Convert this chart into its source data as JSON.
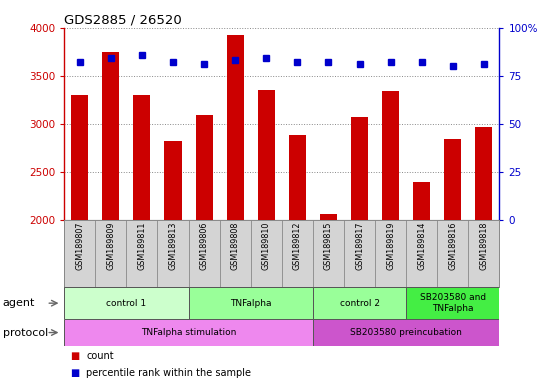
{
  "title": "GDS2885 / 26520",
  "samples": [
    "GSM189807",
    "GSM189809",
    "GSM189811",
    "GSM189813",
    "GSM189806",
    "GSM189808",
    "GSM189810",
    "GSM189812",
    "GSM189815",
    "GSM189817",
    "GSM189819",
    "GSM189814",
    "GSM189816",
    "GSM189818"
  ],
  "counts": [
    3300,
    3750,
    3300,
    2820,
    3090,
    3920,
    3350,
    2880,
    2060,
    3070,
    3340,
    2390,
    2840,
    2960
  ],
  "percentile_ranks": [
    82,
    84,
    86,
    82,
    81,
    83,
    84,
    82,
    82,
    81,
    82,
    82,
    80,
    81
  ],
  "bar_color": "#cc0000",
  "dot_color": "#0000cc",
  "ylim_left": [
    2000,
    4000
  ],
  "ylim_right": [
    0,
    100
  ],
  "yticks_left": [
    2000,
    2500,
    3000,
    3500,
    4000
  ],
  "yticks_right": [
    0,
    25,
    50,
    75,
    100
  ],
  "agent_groups": [
    {
      "label": "control 1",
      "start": 0,
      "end": 4,
      "color": "#ccffcc"
    },
    {
      "label": "TNFalpha",
      "start": 4,
      "end": 8,
      "color": "#99ff99"
    },
    {
      "label": "control 2",
      "start": 8,
      "end": 11,
      "color": "#99ff99"
    },
    {
      "label": "SB203580 and\nTNFalpha",
      "start": 11,
      "end": 14,
      "color": "#44ee44"
    }
  ],
  "protocol_groups": [
    {
      "label": "TNFalpha stimulation",
      "start": 0,
      "end": 8,
      "color": "#ee88ee"
    },
    {
      "label": "SB203580 preincubation",
      "start": 8,
      "end": 14,
      "color": "#cc55cc"
    }
  ],
  "agent_label": "agent",
  "protocol_label": "protocol",
  "legend_count_label": "count",
  "legend_pct_label": "percentile rank within the sample",
  "left_axis_color": "#cc0000",
  "right_axis_color": "#0000cc",
  "grid_color": "#888888",
  "sample_bg_color": "#d4d4d4",
  "plot_bg_color": "#ffffff"
}
